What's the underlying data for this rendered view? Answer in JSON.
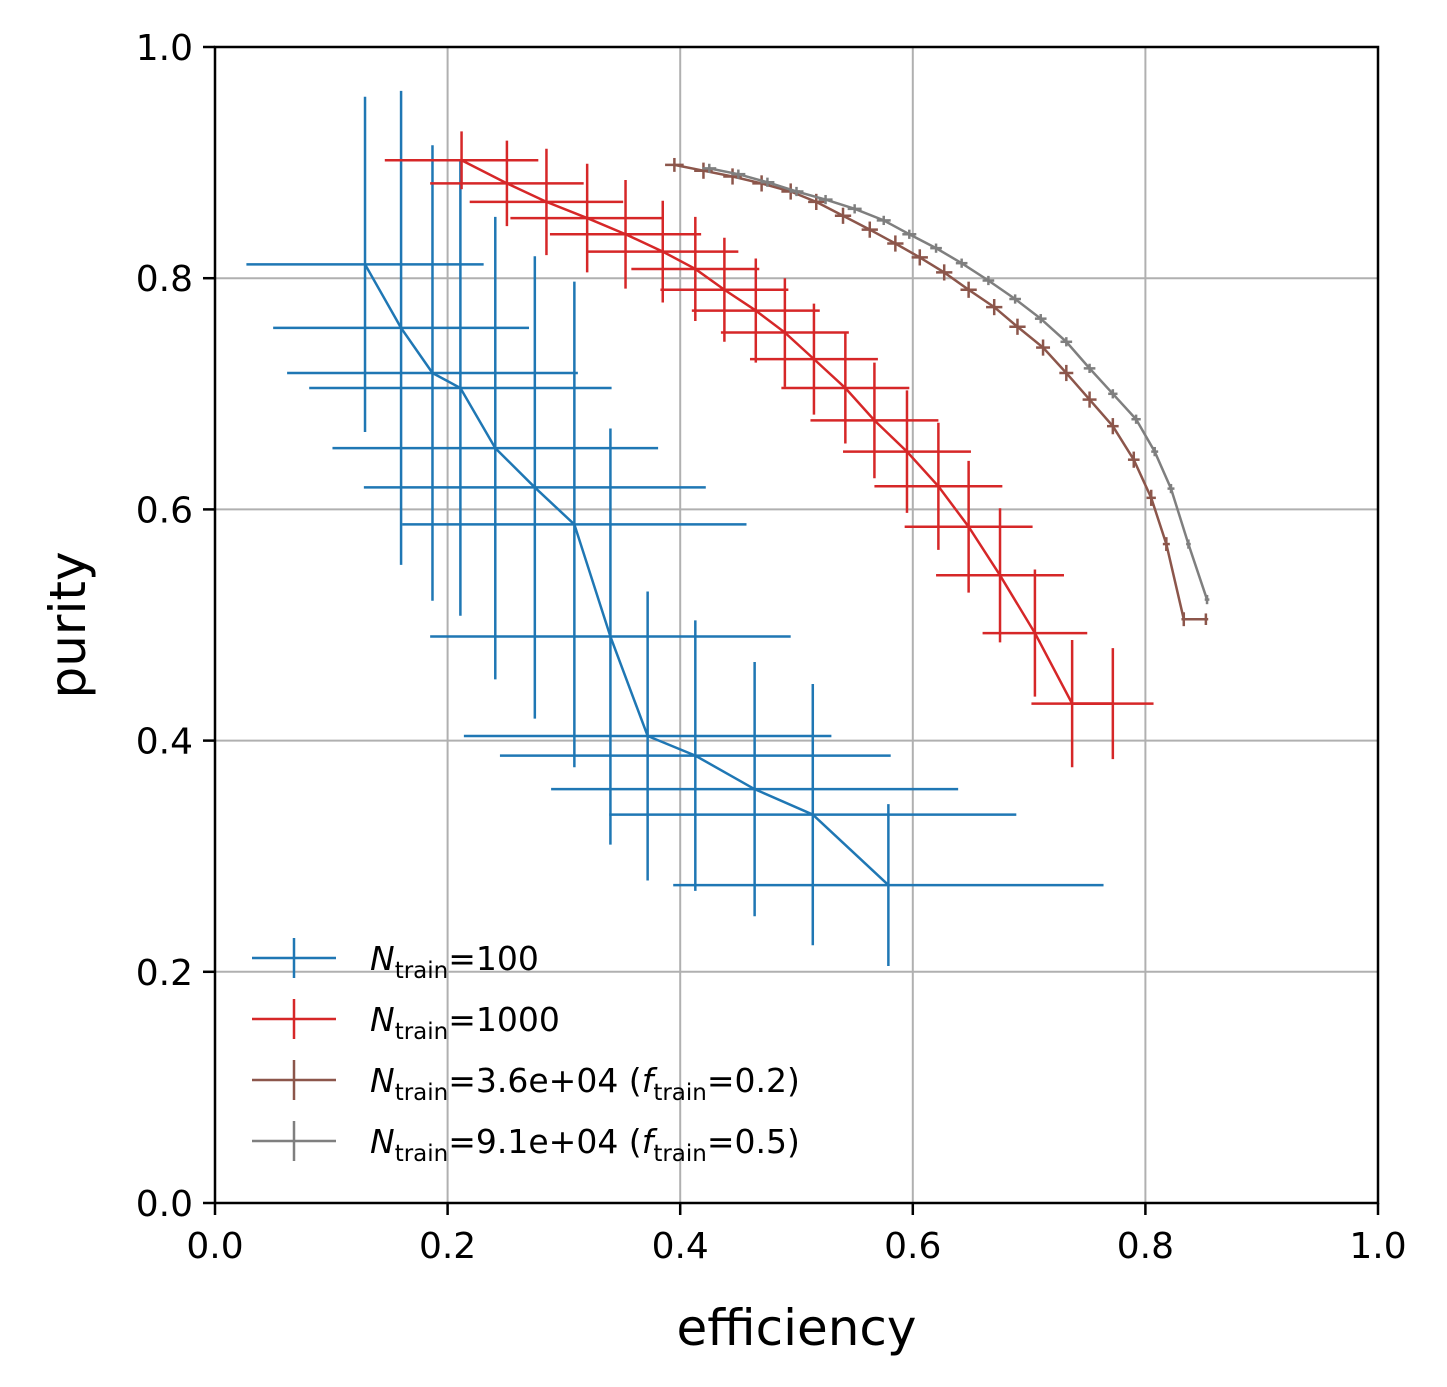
{
  "chart_data": {
    "type": "line",
    "title": "",
    "xlabel": "efficiency",
    "ylabel": "purity",
    "xlim": [
      0,
      1
    ],
    "ylim": [
      0,
      1
    ],
    "grid": true,
    "xticks": [
      "0.0",
      "0.2",
      "0.4",
      "0.6",
      "0.8",
      "1.0"
    ],
    "yticks": [
      "0.0",
      "0.2",
      "0.4",
      "0.6",
      "0.8",
      "1.0"
    ],
    "legend_position": "lower-left",
    "series": [
      {
        "name": "N_train=100",
        "legend": {
          "sym": "N",
          "sub": "train",
          "rest": "=100",
          "sym2": "",
          "sub2": "",
          "rest2": ""
        },
        "color": "#1f77b4",
        "errorbars": true,
        "x": [
          0.129,
          0.16,
          0.187,
          0.211,
          0.241,
          0.275,
          0.309,
          0.34,
          0.372,
          0.413,
          0.464,
          0.514,
          0.579
        ],
        "y": [
          0.812,
          0.757,
          0.718,
          0.705,
          0.653,
          0.619,
          0.587,
          0.49,
          0.404,
          0.387,
          0.358,
          0.336,
          0.275
        ],
        "xerr": [
          0.102,
          0.11,
          0.125,
          0.13,
          0.14,
          0.147,
          0.148,
          0.155,
          0.158,
          0.168,
          0.175,
          0.175,
          0.185
        ],
        "yerr": [
          0.145,
          0.205,
          0.197,
          0.197,
          0.2,
          0.2,
          0.21,
          0.18,
          0.125,
          0.117,
          0.11,
          0.113,
          0.07
        ]
      },
      {
        "name": "N_train=1000",
        "legend": {
          "sym": "N",
          "sub": "train",
          "rest": "=1000",
          "sym2": "",
          "sub2": "",
          "rest2": ""
        },
        "color": "#d62728",
        "errorbars": true,
        "x": [
          0.212,
          0.251,
          0.285,
          0.32,
          0.353,
          0.385,
          0.413,
          0.438,
          0.465,
          0.49,
          0.515,
          0.542,
          0.567,
          0.595,
          0.622,
          0.648,
          0.675,
          0.705,
          0.737,
          0.772
        ],
        "y": [
          0.902,
          0.882,
          0.866,
          0.852,
          0.838,
          0.823,
          0.808,
          0.79,
          0.772,
          0.753,
          0.73,
          0.705,
          0.677,
          0.65,
          0.62,
          0.585,
          0.543,
          0.493,
          0.432,
          0.432
        ],
        "xerr": [
          0.066,
          0.066,
          0.066,
          0.066,
          0.065,
          0.065,
          0.055,
          0.055,
          0.055,
          0.055,
          0.055,
          0.055,
          0.055,
          0.055,
          0.055,
          0.055,
          0.055,
          0.045,
          0.035,
          0.035
        ],
        "yerr": [
          0.025,
          0.037,
          0.046,
          0.047,
          0.047,
          0.044,
          0.045,
          0.045,
          0.045,
          0.047,
          0.048,
          0.048,
          0.05,
          0.053,
          0.055,
          0.057,
          0.058,
          0.055,
          0.055,
          0.048
        ]
      },
      {
        "name": "N_train=3.6e+04 (f_train=0.2)",
        "legend": {
          "sym": "N",
          "sub": "train",
          "rest": "=3.6e+04 (",
          "sym2": "f",
          "sub2": "train",
          "rest2": "=0.2)"
        },
        "color": "#8c564b",
        "errorbars": true,
        "x": [
          0.395,
          0.42,
          0.445,
          0.47,
          0.495,
          0.517,
          0.54,
          0.563,
          0.585,
          0.606,
          0.627,
          0.648,
          0.67,
          0.69,
          0.712,
          0.732,
          0.752,
          0.772,
          0.79,
          0.805,
          0.818,
          0.833,
          0.852
        ],
        "y": [
          0.898,
          0.893,
          0.888,
          0.882,
          0.875,
          0.866,
          0.854,
          0.842,
          0.83,
          0.818,
          0.805,
          0.79,
          0.775,
          0.758,
          0.74,
          0.718,
          0.695,
          0.672,
          0.643,
          0.61,
          0.57,
          0.505,
          0.505
        ],
        "xerr": [
          0.008,
          0.008,
          0.008,
          0.008,
          0.008,
          0.007,
          0.007,
          0.007,
          0.007,
          0.007,
          0.007,
          0.007,
          0.007,
          0.007,
          0.006,
          0.006,
          0.006,
          0.005,
          0.005,
          0.004,
          0.003,
          0.002,
          0.002
        ],
        "yerr": [
          0.006,
          0.007,
          0.007,
          0.007,
          0.007,
          0.007,
          0.007,
          0.007,
          0.007,
          0.007,
          0.007,
          0.007,
          0.007,
          0.007,
          0.007,
          0.007,
          0.007,
          0.007,
          0.007,
          0.007,
          0.006,
          0.006,
          0.005
        ]
      },
      {
        "name": "N_train=9.1e+04 (f_train=0.5)",
        "legend": {
          "sym": "N",
          "sub": "train",
          "rest": "=9.1e+04 (",
          "sym2": "f",
          "sub2": "train",
          "rest2": "=0.5)"
        },
        "color": "#7f7f7f",
        "errorbars": true,
        "x": [
          0.425,
          0.45,
          0.475,
          0.5,
          0.525,
          0.55,
          0.575,
          0.597,
          0.62,
          0.642,
          0.665,
          0.688,
          0.71,
          0.732,
          0.752,
          0.772,
          0.792,
          0.808,
          0.822,
          0.837,
          0.853
        ],
        "y": [
          0.895,
          0.89,
          0.883,
          0.875,
          0.868,
          0.86,
          0.85,
          0.838,
          0.826,
          0.813,
          0.798,
          0.782,
          0.765,
          0.745,
          0.722,
          0.7,
          0.678,
          0.65,
          0.618,
          0.57,
          0.522
        ],
        "xerr": [
          0.006,
          0.006,
          0.006,
          0.006,
          0.006,
          0.006,
          0.006,
          0.006,
          0.005,
          0.005,
          0.005,
          0.005,
          0.005,
          0.005,
          0.005,
          0.004,
          0.004,
          0.003,
          0.003,
          0.002,
          0.002
        ],
        "yerr": [
          0.004,
          0.004,
          0.004,
          0.004,
          0.004,
          0.004,
          0.004,
          0.004,
          0.004,
          0.004,
          0.004,
          0.004,
          0.004,
          0.004,
          0.004,
          0.004,
          0.004,
          0.004,
          0.004,
          0.004,
          0.004
        ]
      }
    ]
  }
}
